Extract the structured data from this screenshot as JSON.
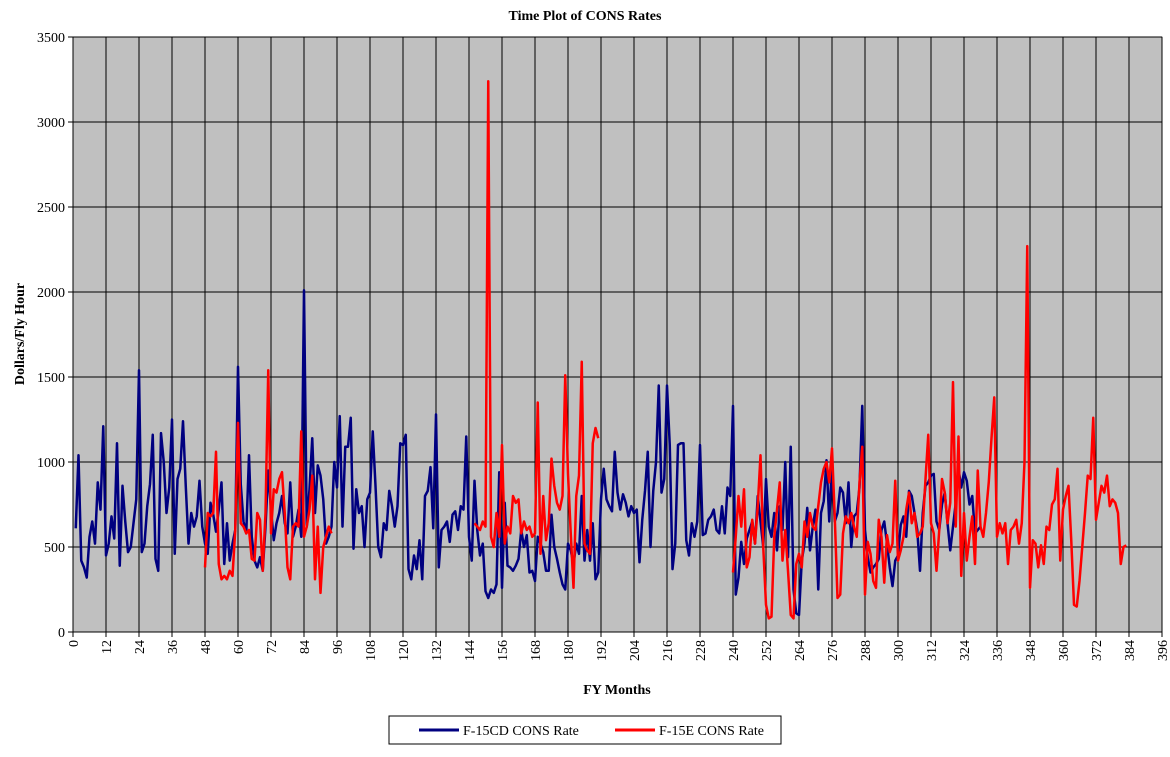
{
  "chart_data": {
    "type": "line",
    "title": "Time Plot of CONS Rates",
    "x_label": "FY Months",
    "y_label": "Dollars/Fly Hour",
    "xlim": [
      0,
      396
    ],
    "xticks": [
      0,
      12,
      24,
      36,
      48,
      60,
      72,
      84,
      96,
      108,
      120,
      132,
      144,
      156,
      168,
      180,
      192,
      204,
      216,
      228,
      240,
      252,
      264,
      276,
      288,
      300,
      312,
      324,
      336,
      348,
      360,
      372,
      384,
      396
    ],
    "ylim": [
      0,
      3500
    ],
    "yticks": [
      0,
      500,
      1000,
      1500,
      2000,
      2500,
      3000,
      3500
    ],
    "grid": true,
    "legend": "bottom",
    "x": [
      1,
      2,
      3,
      4,
      5,
      6,
      7,
      8,
      9,
      10,
      11,
      12,
      13,
      14,
      15,
      16,
      17,
      18,
      19,
      20,
      21,
      22,
      23,
      24,
      25,
      26,
      27,
      28,
      29,
      30,
      31,
      32,
      33,
      34,
      35,
      36,
      37,
      38,
      39,
      40,
      41,
      42,
      43,
      44,
      45,
      46,
      47,
      48,
      49,
      50,
      51,
      52,
      53,
      54,
      55,
      56,
      57,
      58,
      59,
      60,
      61,
      62,
      63,
      64,
      65,
      66,
      67,
      68,
      69,
      70,
      71,
      72,
      73,
      74,
      75,
      76,
      77,
      78,
      79,
      80,
      81,
      82,
      83,
      84,
      85,
      86,
      87,
      88,
      89,
      90,
      91,
      92,
      93,
      94,
      95,
      96,
      97,
      98,
      99,
      100,
      101,
      102,
      103,
      104,
      105,
      106,
      107,
      108,
      109,
      110,
      111,
      112,
      113,
      114,
      115,
      116,
      117,
      118,
      119,
      120,
      121,
      122,
      123,
      124,
      125,
      126,
      127,
      128,
      129,
      130,
      131,
      132,
      133,
      134,
      135,
      136,
      137,
      138,
      139,
      140,
      141,
      142,
      143,
      144,
      145,
      146,
      147,
      148,
      149,
      150,
      151,
      152,
      153,
      154,
      155,
      156,
      157,
      158,
      159,
      160,
      161,
      162,
      163,
      164,
      165,
      166,
      167,
      168,
      169,
      170,
      171,
      172,
      173,
      174,
      175,
      176,
      177,
      178,
      179,
      180,
      181,
      182,
      183,
      184,
      185,
      186,
      187,
      188,
      189,
      190,
      191,
      192,
      193,
      194,
      195,
      196,
      197,
      198,
      199,
      200,
      201,
      202,
      203,
      204,
      205,
      206,
      207,
      208,
      209,
      210,
      211,
      212,
      213,
      214,
      215,
      216,
      217,
      218,
      219,
      220,
      221,
      222,
      223,
      224,
      225,
      226,
      227,
      228,
      229,
      230,
      231,
      232,
      233,
      234,
      235,
      236,
      237,
      238,
      239,
      240,
      241,
      242,
      243,
      244,
      245,
      246,
      247,
      248,
      249,
      250,
      251,
      252,
      253,
      254,
      255,
      256,
      257,
      258,
      259,
      260,
      261,
      262,
      263,
      264,
      265,
      266,
      267,
      268,
      269,
      270,
      271,
      272,
      273,
      274,
      275,
      276,
      277,
      278,
      279,
      280,
      281,
      282,
      283,
      284,
      285,
      286,
      287,
      288,
      289,
      290,
      291,
      292,
      293,
      294,
      295,
      296,
      297,
      298,
      299,
      300,
      301,
      302,
      303,
      304,
      305,
      306,
      307,
      308,
      309,
      310,
      311,
      312,
      313,
      314,
      315,
      316,
      317,
      318,
      319,
      320,
      321,
      322,
      323,
      324,
      325,
      326,
      327,
      328,
      329,
      330,
      331,
      332,
      333,
      334,
      335,
      336,
      337,
      338,
      339,
      340,
      341,
      342,
      343,
      344,
      345,
      346,
      347,
      348,
      349,
      350,
      351,
      352,
      353,
      354,
      355,
      356,
      357,
      358,
      359,
      360,
      361,
      362,
      363,
      364,
      365,
      366,
      367,
      368,
      369,
      370,
      371,
      372,
      373,
      374,
      375,
      376,
      377,
      378,
      379,
      380,
      381,
      382,
      383
    ],
    "series": [
      {
        "name": "F-15CD CONS Rate",
        "color": "#000080",
        "values": [
          610,
          1040,
          420,
          380,
          320,
          560,
          650,
          520,
          880,
          720,
          1210,
          450,
          520,
          680,
          550,
          1110,
          390,
          860,
          650,
          470,
          500,
          640,
          780,
          1540,
          470,
          520,
          740,
          870,
          1160,
          430,
          360,
          1170,
          1000,
          700,
          850,
          1250,
          460,
          900,
          960,
          1240,
          860,
          520,
          700,
          620,
          680,
          890,
          620,
          520,
          460,
          760,
          690,
          590,
          720,
          880,
          400,
          640,
          420,
          520,
          600,
          1560,
          870,
          650,
          580,
          1040,
          560,
          420,
          380,
          440,
          360,
          620,
          950,
          720,
          540,
          640,
          700,
          800,
          640,
          580,
          880,
          560,
          620,
          720,
          560,
          2010,
          620,
          840,
          1140,
          700,
          980,
          920,
          780,
          520,
          560,
          620,
          1000,
          850,
          1270,
          620,
          1090,
          1090,
          1260,
          490,
          840,
          700,
          740,
          500,
          780,
          820,
          1180,
          860,
          500,
          440,
          640,
          600,
          830,
          740,
          620,
          740,
          1110,
          1100,
          1160,
          370,
          310,
          450,
          370,
          540,
          310,
          800,
          830,
          970,
          610,
          1280,
          380,
          600,
          620,
          650,
          530,
          690,
          710,
          600,
          740,
          720,
          1150,
          560,
          420,
          890,
          600,
          450,
          520,
          240,
          200,
          250,
          230,
          280,
          940,
          260,
          760,
          390,
          380,
          360,
          390,
          430,
          600,
          500,
          570,
          350,
          360,
          300,
          560,
          520,
          470,
          360,
          360,
          690,
          500,
          430,
          350,
          280,
          250,
          520,
          480,
          400,
          520,
          460,
          800,
          420,
          600,
          420,
          640,
          310,
          350,
          780,
          960,
          780,
          740,
          710,
          1060,
          820,
          720,
          810,
          760,
          680,
          740,
          700,
          720,
          410,
          660,
          830,
          1060,
          500,
          830,
          1000,
          1450,
          820,
          900,
          1450,
          1100,
          370,
          520,
          1100,
          1110,
          1110,
          540,
          450,
          640,
          560,
          650,
          1100,
          570,
          580,
          660,
          680,
          720,
          600,
          580,
          740,
          580,
          850,
          800,
          1330,
          220,
          320,
          530,
          400,
          550,
          600,
          650,
          520,
          800,
          650,
          500,
          900,
          620,
          560,
          700,
          480,
          740,
          600,
          1000,
          440,
          1090,
          250,
          110,
          100,
          420,
          520,
          730,
          480,
          620,
          720,
          250,
          700,
          770,
          1010,
          650,
          1000,
          650,
          700,
          850,
          820,
          640,
          880,
          500,
          680,
          700,
          850,
          1330,
          600,
          440,
          350,
          380,
          400,
          430,
          600,
          650,
          520,
          380,
          270,
          420,
          450,
          630,
          680,
          560,
          830,
          800,
          700,
          600,
          360,
          700,
          860,
          880,
          920,
          930,
          650,
          600,
          750,
          820,
          640,
          480,
          620,
          760,
          960,
          850,
          940,
          890,
          750,
          800,
          580,
          600,
          620,
          null,
          null,
          null,
          null,
          null,
          null,
          null,
          null,
          null,
          null,
          null,
          null,
          null,
          null,
          null,
          null,
          null,
          null,
          null,
          null,
          null,
          null,
          null,
          null,
          null,
          null,
          null,
          null,
          null,
          null,
          null,
          null,
          null,
          null,
          null,
          null,
          null,
          null,
          null,
          null,
          null,
          null,
          null,
          null,
          null,
          null,
          null,
          null,
          null,
          null,
          null,
          null,
          null
        ]
      },
      {
        "name": "F-15E CONS Rate",
        "color": "#ff0000",
        "values": [
          null,
          null,
          null,
          null,
          null,
          null,
          null,
          null,
          null,
          null,
          null,
          null,
          null,
          null,
          null,
          null,
          null,
          null,
          null,
          null,
          null,
          null,
          null,
          null,
          null,
          null,
          null,
          null,
          null,
          null,
          null,
          null,
          null,
          null,
          null,
          null,
          null,
          null,
          null,
          null,
          null,
          null,
          null,
          null,
          null,
          null,
          null,
          380,
          700,
          680,
          700,
          1060,
          400,
          310,
          330,
          310,
          360,
          330,
          600,
          1230,
          640,
          620,
          580,
          600,
          430,
          420,
          700,
          660,
          360,
          700,
          1540,
          580,
          840,
          820,
          900,
          940,
          700,
          380,
          310,
          620,
          640,
          620,
          1180,
          560,
          620,
          720,
          920,
          310,
          620,
          230,
          500,
          560,
          620,
          580,
          null,
          null,
          null,
          null,
          null,
          null,
          null,
          null,
          null,
          null,
          null,
          null,
          null,
          null,
          null,
          null,
          null,
          null,
          null,
          null,
          null,
          null,
          null,
          null,
          null,
          null,
          null,
          null,
          null,
          null,
          null,
          null,
          null,
          null,
          null,
          null,
          null,
          null,
          null,
          null,
          null,
          null,
          null,
          null,
          null,
          null,
          null,
          null,
          null,
          null,
          null,
          640,
          620,
          600,
          650,
          620,
          3240,
          560,
          500,
          700,
          560,
          1100,
          520,
          620,
          580,
          800,
          760,
          780,
          580,
          650,
          600,
          620,
          560,
          580,
          1350,
          460,
          800,
          540,
          640,
          1020,
          860,
          760,
          720,
          800,
          1510,
          930,
          580,
          260,
          800,
          920,
          1590,
          520,
          480,
          460,
          1110,
          1200,
          1140,
          null,
          null,
          null,
          null,
          null,
          null,
          null,
          null,
          null,
          null,
          null,
          null,
          null,
          null,
          null,
          null,
          null,
          null,
          null,
          null,
          null,
          null,
          null,
          null,
          null,
          null,
          null,
          null,
          null,
          null,
          null,
          null,
          null,
          null,
          null,
          null,
          null,
          null,
          null,
          null,
          null,
          null,
          null,
          null,
          null,
          null,
          null,
          null,
          350,
          560,
          800,
          620,
          840,
          380,
          440,
          660,
          520,
          740,
          1040,
          500,
          160,
          80,
          90,
          560,
          720,
          880,
          420,
          600,
          360,
          100,
          80,
          400,
          460,
          380,
          650,
          560,
          700,
          620,
          600,
          740,
          880,
          960,
          1000,
          880,
          1080,
          680,
          200,
          220,
          580,
          680,
          640,
          700,
          620,
          560,
          880,
          1090,
          220,
          530,
          460,
          300,
          260,
          660,
          560,
          290,
          570,
          470,
          520,
          890,
          420,
          480,
          560,
          720,
          820,
          640,
          700,
          560,
          580,
          620,
          900,
          1160,
          640,
          580,
          360,
          600,
          900,
          820,
          640,
          760,
          1470,
          620,
          1150,
          330,
          700,
          420,
          560,
          680,
          400,
          950,
          620,
          560,
          700,
          880,
          1140,
          1380,
          560,
          640,
          580,
          640,
          400,
          600,
          620,
          660,
          520,
          640,
          1000,
          2270,
          260,
          540,
          520,
          380,
          510,
          400,
          620,
          600,
          750,
          780,
          960,
          420,
          720,
          800,
          860,
          540,
          160,
          150,
          300,
          500,
          700,
          920,
          900,
          1260,
          660,
          760,
          860,
          820,
          920,
          740,
          780,
          760,
          700,
          400,
          500,
          510
        ]
      }
    ]
  }
}
